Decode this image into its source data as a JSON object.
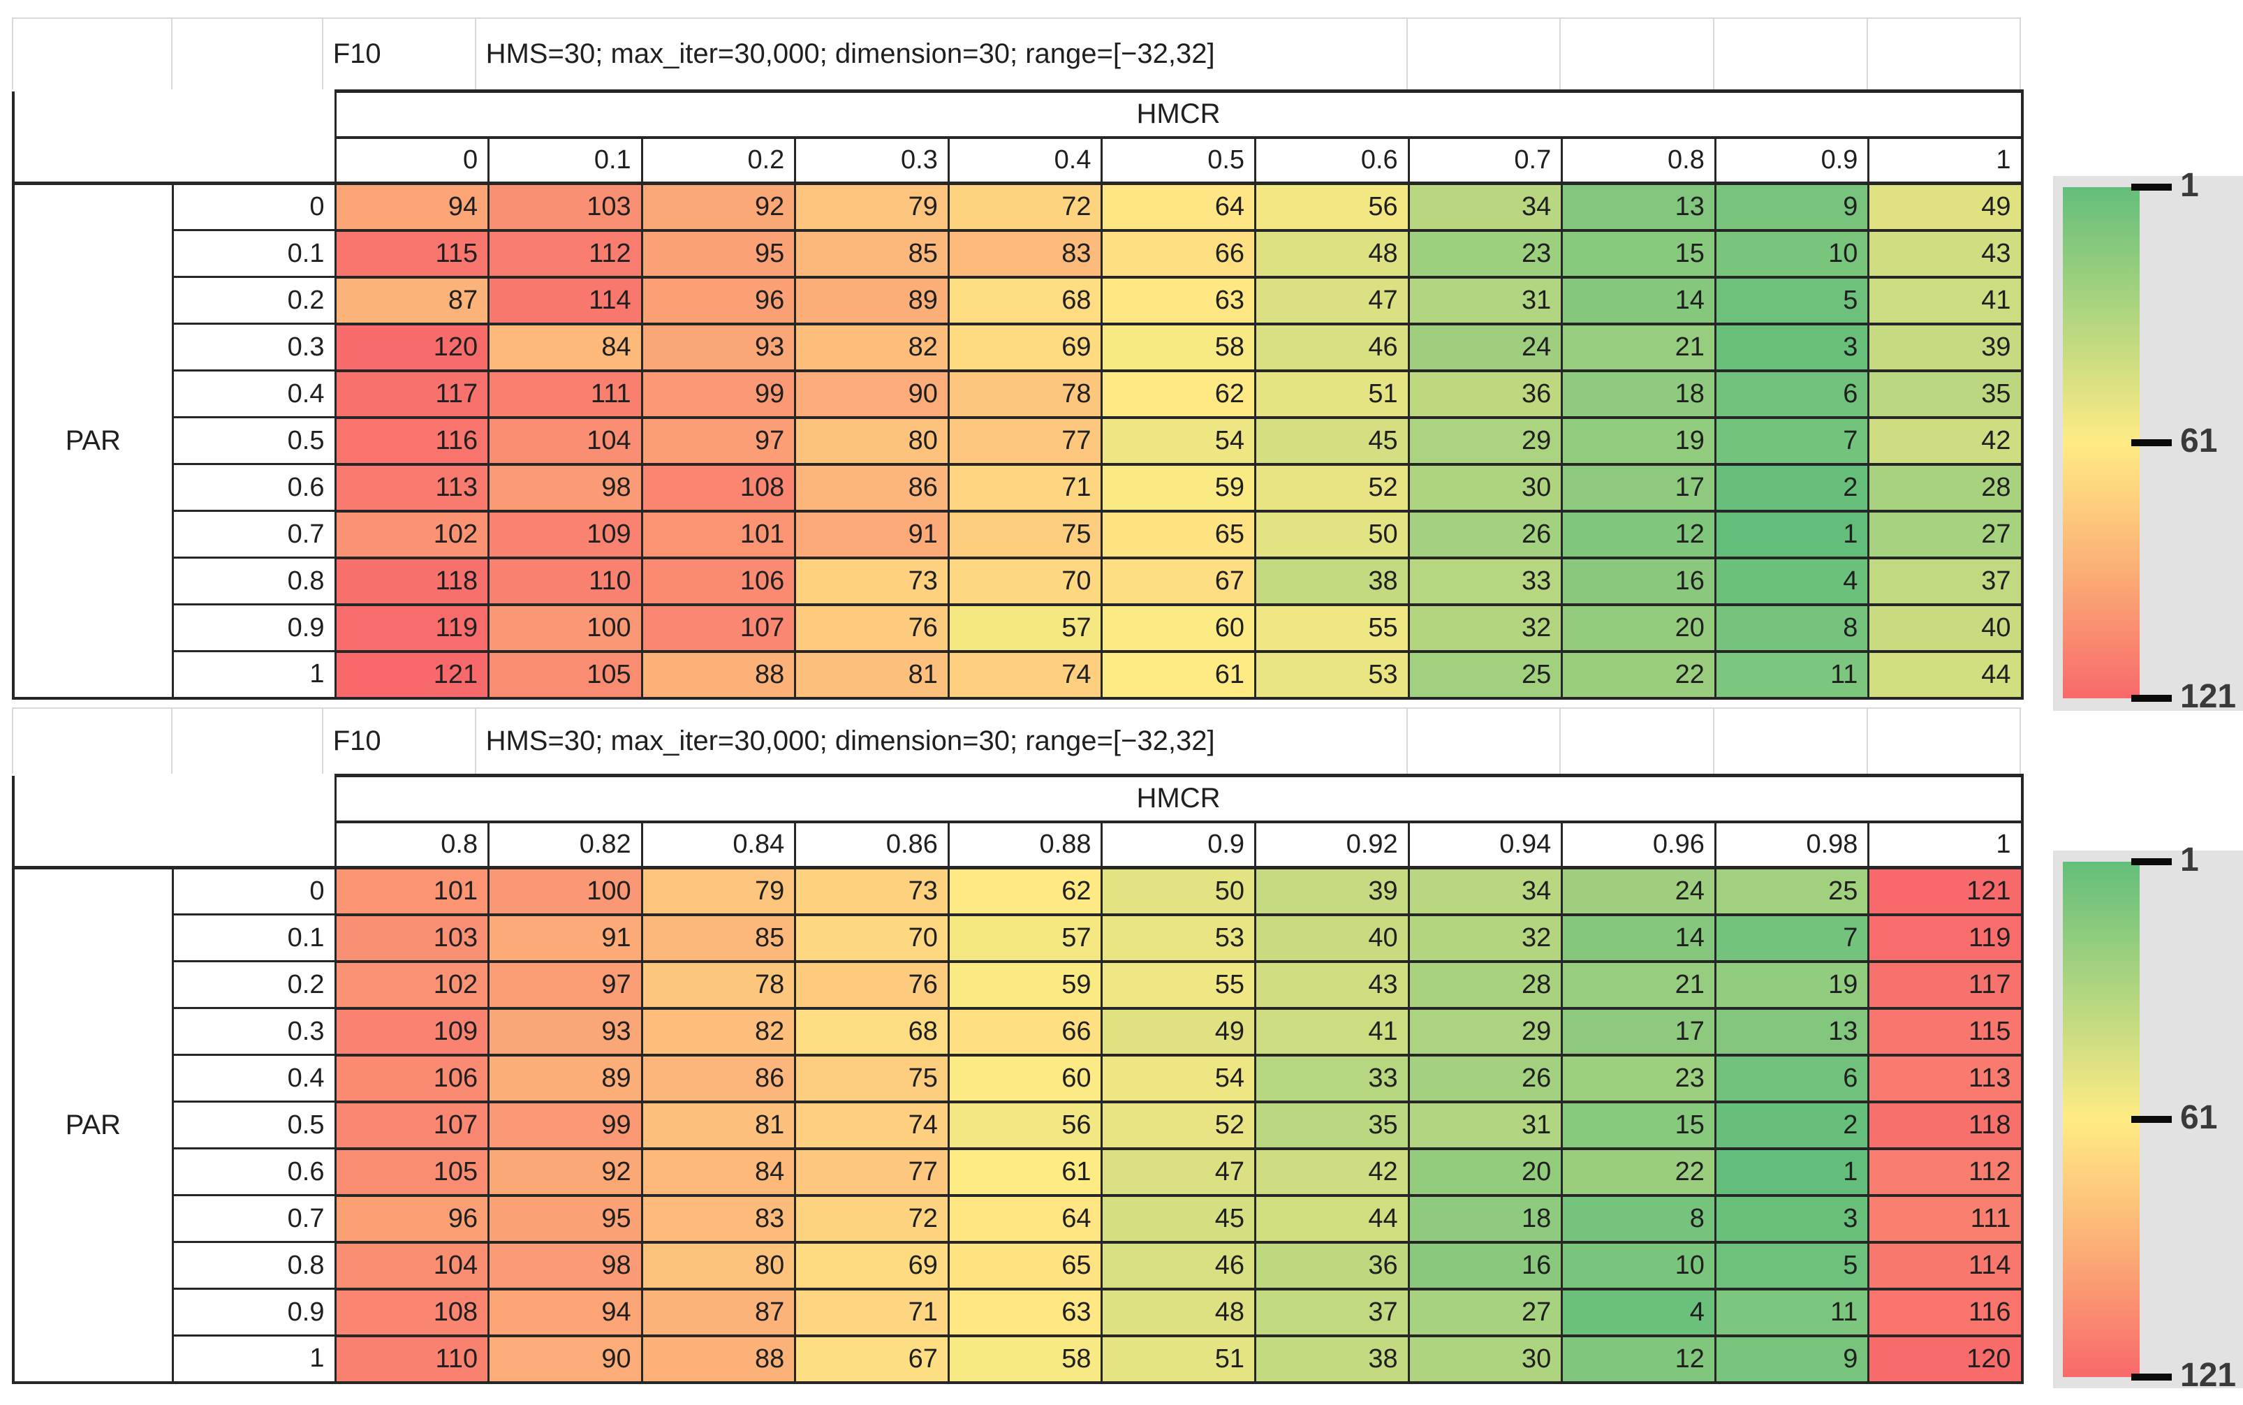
{
  "page": {
    "background": "#ffffff",
    "panel_color": "#e2e2e2"
  },
  "color_scale": {
    "min_value": 1,
    "min_color": "#63BE7B",
    "mid_value": 61,
    "mid_color": "#FFEB84",
    "max_value": 121,
    "max_color": "#F8696B"
  },
  "chart_data": [
    {
      "type": "heatmap",
      "title": "F10",
      "subtitle": "HMS=30; max_iter=30,000; dimension=30; range=[−32,32]",
      "x_axis_title": "HMCR",
      "y_axis_title": "PAR",
      "x_ticks": [
        "0",
        "0.1",
        "0.2",
        "0.3",
        "0.4",
        "0.5",
        "0.6",
        "0.7",
        "0.8",
        "0.9",
        "1"
      ],
      "y_ticks": [
        "0",
        "0.1",
        "0.2",
        "0.3",
        "0.4",
        "0.5",
        "0.6",
        "0.7",
        "0.8",
        "0.9",
        "1"
      ],
      "values": [
        [
          94,
          103,
          92,
          79,
          72,
          64,
          56,
          34,
          13,
          9,
          49
        ],
        [
          115,
          112,
          95,
          85,
          83,
          66,
          48,
          23,
          15,
          10,
          43
        ],
        [
          87,
          114,
          96,
          89,
          68,
          63,
          47,
          31,
          14,
          5,
          41
        ],
        [
          120,
          84,
          93,
          82,
          69,
          58,
          46,
          24,
          21,
          3,
          39
        ],
        [
          117,
          111,
          99,
          90,
          78,
          62,
          51,
          36,
          18,
          6,
          35
        ],
        [
          116,
          104,
          97,
          80,
          77,
          54,
          45,
          29,
          19,
          7,
          42
        ],
        [
          113,
          98,
          108,
          86,
          71,
          59,
          52,
          30,
          17,
          2,
          28
        ],
        [
          102,
          109,
          101,
          91,
          75,
          65,
          50,
          26,
          12,
          1,
          27
        ],
        [
          118,
          110,
          106,
          73,
          70,
          67,
          38,
          33,
          16,
          4,
          37
        ],
        [
          119,
          100,
          107,
          76,
          57,
          60,
          55,
          32,
          20,
          8,
          40
        ],
        [
          121,
          105,
          88,
          81,
          74,
          61,
          53,
          25,
          22,
          11,
          44
        ]
      ],
      "value_range": [
        1,
        121
      ],
      "legend_ticks": [
        "1",
        "61",
        "121"
      ],
      "legend_position": "right"
    },
    {
      "type": "heatmap",
      "title": "F10",
      "subtitle": "HMS=30; max_iter=30,000; dimension=30; range=[−32,32]",
      "x_axis_title": "HMCR",
      "y_axis_title": "PAR",
      "x_ticks": [
        "0.8",
        "0.82",
        "0.84",
        "0.86",
        "0.88",
        "0.9",
        "0.92",
        "0.94",
        "0.96",
        "0.98",
        "1"
      ],
      "y_ticks": [
        "0",
        "0.1",
        "0.2",
        "0.3",
        "0.4",
        "0.5",
        "0.6",
        "0.7",
        "0.8",
        "0.9",
        "1"
      ],
      "values": [
        [
          101,
          100,
          79,
          73,
          62,
          50,
          39,
          34,
          24,
          25,
          121
        ],
        [
          103,
          91,
          85,
          70,
          57,
          53,
          40,
          32,
          14,
          7,
          119
        ],
        [
          102,
          97,
          78,
          76,
          59,
          55,
          43,
          28,
          21,
          19,
          117
        ],
        [
          109,
          93,
          82,
          68,
          66,
          49,
          41,
          29,
          17,
          13,
          115
        ],
        [
          106,
          89,
          86,
          75,
          60,
          54,
          33,
          26,
          23,
          6,
          113
        ],
        [
          107,
          99,
          81,
          74,
          56,
          52,
          35,
          31,
          15,
          2,
          118
        ],
        [
          105,
          92,
          84,
          77,
          61,
          47,
          42,
          20,
          22,
          1,
          112
        ],
        [
          96,
          95,
          83,
          72,
          64,
          45,
          44,
          18,
          8,
          3,
          111
        ],
        [
          104,
          98,
          80,
          69,
          65,
          46,
          36,
          16,
          10,
          5,
          114
        ],
        [
          108,
          94,
          87,
          71,
          63,
          48,
          37,
          27,
          4,
          11,
          116
        ],
        [
          110,
          90,
          88,
          67,
          58,
          51,
          38,
          30,
          12,
          9,
          120
        ]
      ],
      "value_range": [
        1,
        121
      ],
      "legend_ticks": [
        "1",
        "61",
        "121"
      ],
      "legend_position": "right"
    }
  ]
}
